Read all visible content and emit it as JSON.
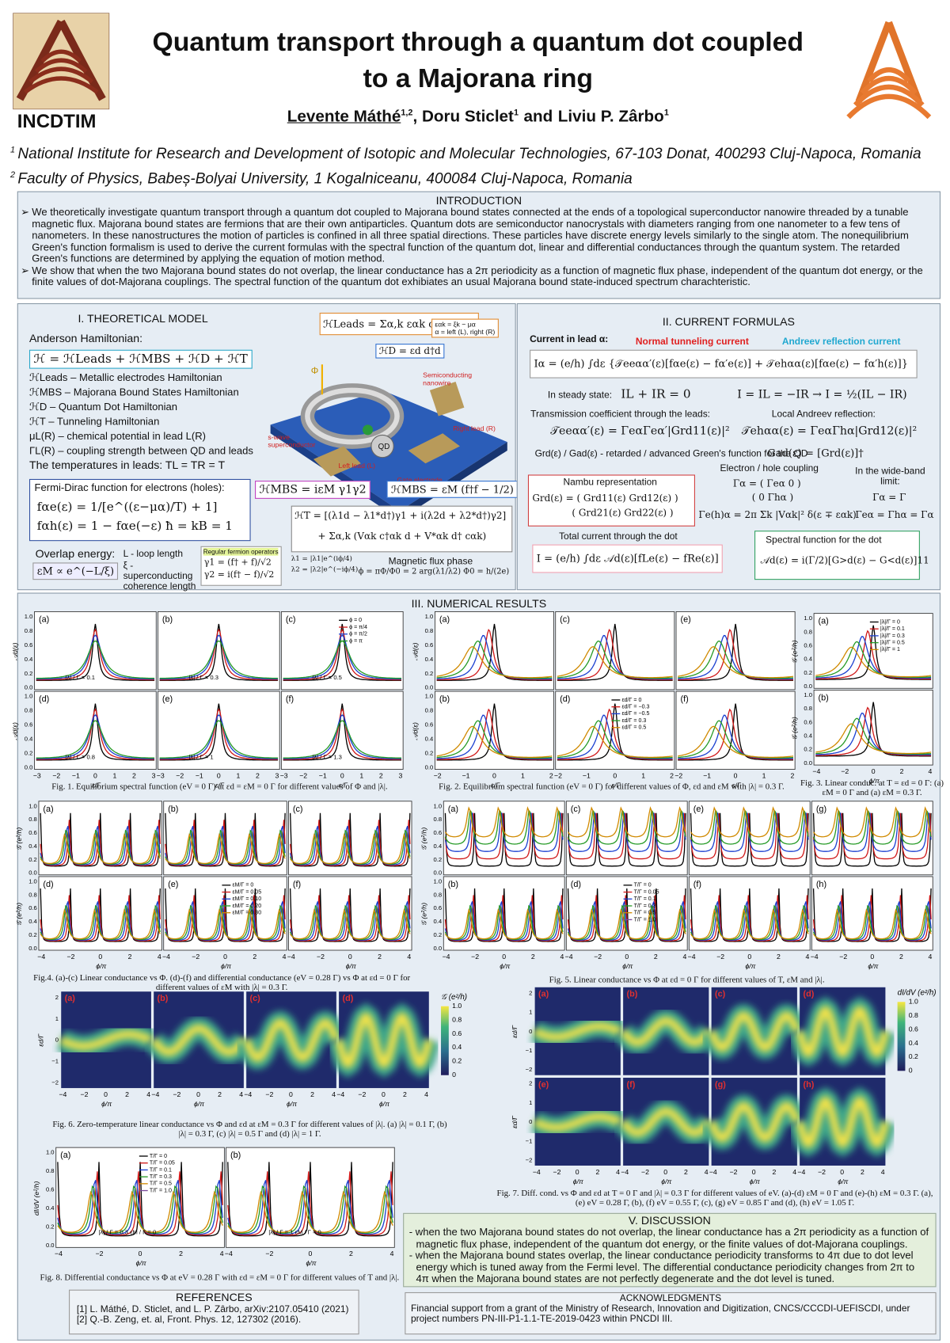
{
  "header": {
    "institute": "INCDTIM",
    "title": "Quantum transport through a quantum dot coupled to a Majorana ring",
    "authors": [
      {
        "name": "Levente Máthé",
        "sup": "1,2"
      },
      {
        "name": "Doru Sticlet",
        "sup": "1"
      },
      {
        "name": "Liviu P. Zârbo",
        "sup": "1"
      }
    ],
    "separators": [
      ", ",
      "and"
    ],
    "affiliations": [
      {
        "sup": "1",
        "text": "National Institute for Research and Development of Isotopic and Molecular Technologies, 67-103 Donat, 400293 Cluj-Napoca, Romania"
      },
      {
        "sup": "2",
        "text": "Faculty of Physics, Babeș-Bolyai University, 1 Kogalniceanu, 400084 Cluj-Napoca, Romania"
      }
    ]
  },
  "introduction": {
    "heading": "INTRODUCTION",
    "bullets": [
      "We theoretically investigate quantum transport through a quantum dot coupled to Majorana bound states connected at the ends of a topological superconductor nanowire threaded by a tunable magnetic flux. Majorana bound states are fermions that are their own antiparticles. Quantum dots are semiconductor nanocrystals with diameters ranging from one nanometer to a few tens of nanometers. In these nanostructures the motion of particles is confined in all three spatial directions. These particles have discrete energy levels similarly to the single atom. The nonequilibrium Green's function formalism is used to derive the current formulas with the spectral function of the quantum dot, linear and differential conductances through the quantum system. The retarded Green's functions are determined by applying the equation of motion method.",
      "We show that when the two Majorana bound states do not overlap, the linear conductance has a 2π periodicity as a function of magnetic flux phase, independent of the quantum dot energy, or the finite values of dot-Majorana couplings. The spectral function of the quantum dot exhibiates an usual Majorana bound state-induced spectrum charachteristic."
    ]
  },
  "theory": {
    "heading": "I. THEORETICAL MODEL",
    "intro": "Anderson Hamiltonian:",
    "hamiltonian": "ℋ = ℋLeads + ℋMBS + ℋD + ℋT",
    "items": [
      "ℋLeads – Metallic electrodes Hamiltonian",
      "ℋMBS – Majorana Bound States Hamiltonian",
      "ℋD – Quantum Dot Hamiltonian",
      "ℋT – Tunneling Hamiltonian",
      "μL(R) – chemical potential in lead L(R)",
      "ΓL(R) – coupling strength between QD and leads"
    ],
    "temperatures": "The temperatures in leads:  TL = TR = T",
    "fermi": {
      "heading": "Fermi-Dirac function for electrons (holes):",
      "eq1": "fαe(ε) = 1/[e^((ε−μα)/T) + 1]",
      "eq2": "fαh(ε) = 1 − fαe(−ε)   ħ = kB = 1"
    },
    "overlap": {
      "heading": "Overlap energy:",
      "eq": "εM ∝ e^(−L/ξ)",
      "loop": "L - loop length",
      "coherence": "ξ - superconducting coherence length",
      "fermion_heading": "Regular fermion operators",
      "gamma1": "γ1 = (f† + f)/√2",
      "gamma2": "γ2 = i(f† − f)/√2"
    },
    "diagram": {
      "h_leads": "ℋLeads = Σα,k εαk c†αk cαk",
      "eps": "εαk = ξk − μα",
      "alpha": "α = left (L), right (R)",
      "h_dot": "ℋD = εd d†d",
      "nanowire": "Semiconducting nanowire",
      "qd": "QD",
      "superconductor": "s-wave superconductor",
      "left_lead": "Left lead (L)",
      "right_lead": "Right lead (R)",
      "gate": "Gate electrode",
      "flux": "Φ",
      "h_mbs1": "ℋMBS = iεM γ1γ2",
      "h_mbs2": "ℋMBS = εM (f†f − 1/2)",
      "h_t1": "ℋT = [(λ1d − λ1*d†)γ1 + i(λ2d + λ2*d†)γ2]",
      "h_t2": "+ Σα,k (Vαk c†αk d + V*αk d† cαk)",
      "lambda1": "λ1 = |λ1|e^(iϕ/4)",
      "lambda2": "λ2 = |λ2|e^(−iϕ/4)",
      "flux_heading": "Magnetic flux phase",
      "flux_eq": "ϕ = πΦ/Φ0 = 2 arg(λ1/λ2)   Φ0 = h/(2e)"
    }
  },
  "formulas": {
    "heading": "II. CURRENT FORMULAS",
    "current": "Current in lead α:",
    "normal": "Normal tunneling current",
    "andreev": "Andreev reflection current",
    "current_eq": "Iα = (e/h) ∫dε {𝒯eeαα′(ε)[fαe(ε) − fα′e(ε)] + 𝒯ehαα(ε)[fαe(ε) − fα′h(ε)]}",
    "steady": "In steady state:",
    "steady_eq1": "IL + IR = 0",
    "steady_eq2": "I = IL = −IR → I = ½(IL − IR)",
    "transmission": "Transmission coefficient through the leads:",
    "local_andreev": "Local Andreev reflection:",
    "t_ee": "𝒯eeαα′(ε) = ΓeαΓeα′|Grd11(ε)|²",
    "t_eh": "𝒯ehαα(ε) = ΓeαΓhα|Grd12(ε)|²",
    "green": "Grd(ε) / Gad(ε) - retarded / advanced Green's function for the QD",
    "green_adv": "Gad(ε) = [Grd(ε)]†",
    "nambu": "Nambu representation",
    "nambu_row1": "Grd(ε) = ( Grd11(ε)   Grd12(ε) )",
    "nambu_row2": "( Grd21(ε)   Grd22(ε) )",
    "coupling": "Electron / hole coupling",
    "coupling_row1": "Γα = ( Γeα   0 )",
    "coupling_row2": "( 0   Γhα )",
    "coupling_eq": "Γe(h)α = 2π Σk |Vαk|² δ(ε ∓ εαk)",
    "wideband": "In the wide-band limit:",
    "wideband_eq1": "Γα = Γ",
    "wideband_eq2": "Γeα = Γhα = Γα",
    "total": "Total current through the dot",
    "total_eq": "I = (e/h) ∫dε 𝒜d(ε)[fLe(ε) − fRe(ε)]",
    "spectral": "Spectral function for the dot",
    "spectral_eq": "𝒜d(ε) = i(Γ/2)[G>d(ε) − G<d(ε)]11"
  },
  "results": {
    "heading": "III. NUMERICAL RESULTS",
    "figures": [
      {
        "caption": "Fig. 1. Equilibrium spectral function (eV = 0 Γ) at εd = εM = 0 Γ for different values of Φ and |λ|.",
        "panels": [
          "(a)",
          "(b)",
          "(c)",
          "(d)",
          "(e)",
          "(f)"
        ],
        "notes": [
          "|λ| / Γ = 0.1",
          "|λ| / Γ = 0.3",
          "|λ| / Γ = 0.5",
          "|λ| / Γ = 0.8",
          "|λ| / Γ = 1",
          "|λ| / Γ = 1.3"
        ],
        "legend": [
          "ϕ = 0",
          "ϕ = π/4",
          "ϕ = π/2",
          "ϕ = π"
        ],
        "xticks": [
          "−3",
          "−2",
          "−1",
          "0",
          "1",
          "2",
          "3"
        ],
        "yticks": [
          "0.0",
          "0.2",
          "0.4",
          "0.6",
          "0.8",
          "1.0"
        ],
        "xlabel": "ε/Γ",
        "ylabel": "𝒜d(ε)"
      },
      {
        "caption": "Fig. 2. Equilibrium spectral function (eV = 0 Γ) for different values of Φ, εd and εM with |λ| = 0.3 Γ.",
        "panels": [
          "(a)",
          "(c)",
          "(e)",
          "(b)",
          "(d)",
          "(f)"
        ],
        "legend": [
          "εd/Γ = 0",
          "εd/Γ = −0.3",
          "εd/Γ = −0.5",
          "εd/Γ = 0.3",
          "εd/Γ = 0.5"
        ],
        "xticks": [
          "−2",
          "−1",
          "0",
          "1",
          "2"
        ],
        "yticks": [
          "0.0",
          "0.2",
          "0.4",
          "0.6",
          "0.8",
          "1.0"
        ],
        "xlabel": "ε/Γ",
        "ylabel": "𝒜d(ε)"
      },
      {
        "caption": "Fig. 3. Linear conduc. at T = εd = 0 Γ: (a) εM = 0 Γ and (a) εM = 0.3 Γ.",
        "panels": [
          "(a)",
          "(b)"
        ],
        "legend": [
          "|λ|/Γ = 0",
          "|λ|/Γ = 0.1",
          "|λ|/Γ = 0.3",
          "|λ|/Γ = 0.5",
          "|λ|/Γ = 1"
        ],
        "xticks": [
          "−4",
          "−2",
          "0",
          "2",
          "4"
        ],
        "yticks": [
          "0.0",
          "0.2",
          "0.4",
          "0.6",
          "0.8",
          "1.0"
        ],
        "xlabel": "ϕ/π",
        "ylabel": "𝒢 (e²/h)"
      },
      {
        "caption": "Fig.4. (a)-(c) Linear conductance vs Φ. (d)-(f) and differential conductance (eV = 0.28 Γ) vs Φ at εd = 0 Γ for different values of εM with |λ| = 0.3 Γ.",
        "panels": [
          "(a)",
          "(b)",
          "(c)",
          "(d)",
          "(e)",
          "(f)"
        ],
        "legend": [
          "εM/Γ = 0",
          "εM/Γ = 0.05",
          "εM/Γ = 0.10",
          "εM/Γ = 0.20",
          "εM/Γ = 0.30"
        ],
        "xticks": [
          "−4",
          "−2",
          "0",
          "2",
          "4"
        ],
        "yticks": [
          "0.0",
          "0.2",
          "0.4",
          "0.6",
          "0.8",
          "1.0"
        ],
        "xlabel": "ϕ/π",
        "ylabel": "𝒢 (e²/h)"
      },
      {
        "caption": "Fig. 5. Linear conductance vs Φ at εd = 0 Γ for different values of  T, εM and |λ|.",
        "panels": [
          "(a)",
          "(c)",
          "(e)",
          "(g)",
          "(b)",
          "(d)",
          "(f)",
          "(h)"
        ],
        "legend": [
          "T/Γ = 0",
          "T/Γ = 0.05",
          "T/Γ = 0.1",
          "T/Γ = 0.3",
          "T/Γ = 0.5",
          "T/Γ = 1.0"
        ],
        "xticks": [
          "−4",
          "−2",
          "0",
          "2",
          "4"
        ],
        "yticks": [
          "0.0",
          "0.2",
          "0.4",
          "0.6",
          "0.8",
          "1.0"
        ],
        "xlabel": "ϕ/π",
        "ylabel": "𝒢 (e²/h)"
      },
      {
        "caption": "Fig. 6. Zero-temperature linear conductance vs Φ and εd at εM = 0.3 Γ for different values of  |λ|. (a) |λ| = 0.1 Γ, (b) |λ| = 0.3 Γ, (c) |λ| = 0.5 Γ and (d) |λ| = 1 Γ.",
        "panels": [
          "(a)",
          "(b)",
          "(c)",
          "(d)"
        ],
        "xticks": [
          "−4",
          "−2",
          "0",
          "2",
          "4"
        ],
        "yticks": [
          "2",
          "1",
          "0",
          "−1",
          "−2"
        ],
        "xlabel": "ϕ/π",
        "ylabel": "εd/Γ",
        "colorbar_title": "𝒢 (e²/h)",
        "colorbar_ticks": [
          "1.0",
          "0.8",
          "0.6",
          "0.4",
          "0.2",
          "0"
        ]
      },
      {
        "caption": "Fig. 7. Diff. cond. vs Φ and εd at T = 0 Γ and |λ| = 0.3 Γ for different values of  eV. (a)-(d) εM = 0 Γ and (e)-(h) εM = 0.3 Γ. (a), (e) eV = 0.28 Γ, (b), (f) eV = 0.55 Γ, (c), (g) eV = 0.85 Γ and (d), (h) eV = 1.05 Γ.",
        "panels": [
          "(a)",
          "(b)",
          "(c)",
          "(d)",
          "(e)",
          "(f)",
          "(g)",
          "(h)"
        ],
        "xticks": [
          "−4",
          "−2",
          "0",
          "2",
          "4"
        ],
        "yticks": [
          "2",
          "1",
          "0",
          "−1",
          "−2"
        ],
        "xlabel": "ϕ/π",
        "ylabel": "εd/Γ",
        "colorbar_title": "dI/dV (e²/h)",
        "colorbar_ticks": [
          "1.0",
          "0.8",
          "0.6",
          "0.4",
          "0.2",
          "0"
        ]
      },
      {
        "caption": "Fig. 8. Differential conductance vs Φ at eV = 0.28 Γ with εd = εM = 0 Γ for different values of T and |λ|.",
        "panels": [
          "(a)",
          "(b)"
        ],
        "notes": [
          "|λ| / Γ = 0.3  εM / Γ = 0",
          "|λ| / Γ = 1  εM / Γ = 0"
        ],
        "legend": [
          "T/Γ = 0",
          "T/Γ = 0.05",
          "T/Γ = 0.1",
          "T/Γ = 0.3",
          "T/Γ = 0.5",
          "T/Γ = 1.0"
        ],
        "xticks": [
          "−4",
          "−2",
          "0",
          "2",
          "4"
        ],
        "yticks": [
          "0.0",
          "0.2",
          "0.4",
          "0.6",
          "0.8",
          "1.0"
        ],
        "xlabel": "ϕ/π",
        "ylabel": "dI/dV (e²/h)"
      }
    ]
  },
  "discussion": {
    "heading": "V. DISCUSSION",
    "bullets": [
      "when the two Majorana bound states do not overlap, the linear conductance has a 2π periodicity as a function of magnetic flux phase, independent of the quantum dot energy, or the finite values of dot-Majorana couplings.",
      "when the Majorana bound states overlap, the linear conductance periodicity transforms to 4π due to dot level energy which is tuned away from the Fermi level. The differential conductance periodicity changes from 2π to 4π when the Majorana bound states are not perfectly degenerate and the dot level is tuned."
    ]
  },
  "references": {
    "heading": "REFERENCES",
    "items": [
      "[1] L. Máthé, D. Sticlet, and L. P. Zârbo, arXiv:2107.05410 (2021)",
      "[2] Q.-B. Zeng, et. al, Front. Phys. 12, 127302 (2016)."
    ]
  },
  "acknowledgments": {
    "heading": "ACKNOWLEDGMENTS",
    "text": "Financial support from a grant of the Ministry of Research, Innovation and Digitization, CNCS/CCCDI-UEFISCDI, under project numbers PN-III-P1-1.1-TE-2019-0423 within PNCDI III."
  }
}
